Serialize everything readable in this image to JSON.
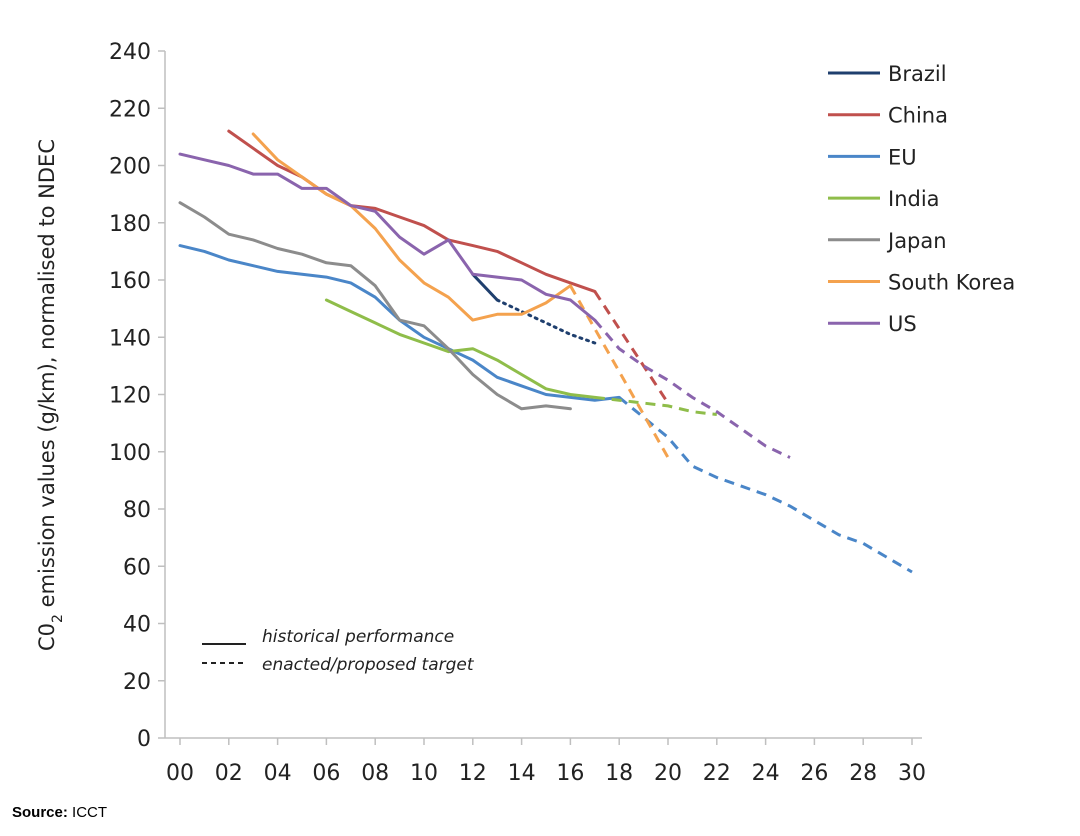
{
  "chart_data": {
    "type": "line",
    "ylabel_pre": "C0",
    "ylabel_sub": "2",
    "ylabel_post": " emission values (g/km), normalised to NDEC",
    "xlim": [
      2000,
      2030
    ],
    "ylim": [
      0,
      240
    ],
    "x_ticks": [
      {
        "value": 2000,
        "label": "00"
      },
      {
        "value": 2002,
        "label": "02"
      },
      {
        "value": 2004,
        "label": "04"
      },
      {
        "value": 2006,
        "label": "06"
      },
      {
        "value": 2008,
        "label": "08"
      },
      {
        "value": 2010,
        "label": "10"
      },
      {
        "value": 2012,
        "label": "12"
      },
      {
        "value": 2014,
        "label": "14"
      },
      {
        "value": 2016,
        "label": "16"
      },
      {
        "value": 2018,
        "label": "18"
      },
      {
        "value": 2020,
        "label": "20"
      },
      {
        "value": 2022,
        "label": "22"
      },
      {
        "value": 2024,
        "label": "24"
      },
      {
        "value": 2026,
        "label": "26"
      },
      {
        "value": 2028,
        "label": "28"
      },
      {
        "value": 2030,
        "label": "30"
      }
    ],
    "y_ticks": [
      0,
      20,
      40,
      60,
      80,
      100,
      120,
      140,
      160,
      180,
      200,
      220,
      240
    ],
    "grid": false,
    "legend_position": "top-right",
    "series": [
      {
        "name": "Brazil",
        "color": "#1f3f6e",
        "historical": [
          [
            2012,
            162
          ],
          [
            2013,
            153
          ]
        ],
        "target": [
          [
            2013,
            153
          ],
          [
            2014,
            149
          ],
          [
            2015,
            145
          ],
          [
            2016,
            141
          ],
          [
            2017,
            138
          ]
        ],
        "target_style": "dotted"
      },
      {
        "name": "China",
        "color": "#c0504d",
        "historical": [
          [
            2002,
            212
          ],
          [
            2003,
            206
          ],
          [
            2004,
            200
          ],
          [
            2005,
            196
          ],
          [
            2006,
            190
          ],
          [
            2007,
            186
          ],
          [
            2008,
            185
          ],
          [
            2009,
            182
          ],
          [
            2010,
            179
          ],
          [
            2011,
            174
          ],
          [
            2012,
            172
          ],
          [
            2013,
            170
          ],
          [
            2014,
            166
          ],
          [
            2015,
            162
          ],
          [
            2016,
            159
          ],
          [
            2017,
            156
          ]
        ],
        "target": [
          [
            2017,
            156
          ],
          [
            2018,
            143
          ],
          [
            2019,
            130
          ],
          [
            2020,
            117
          ]
        ]
      },
      {
        "name": "EU",
        "color": "#4a86c8",
        "historical": [
          [
            2000,
            172
          ],
          [
            2001,
            170
          ],
          [
            2002,
            167
          ],
          [
            2003,
            165
          ],
          [
            2004,
            163
          ],
          [
            2005,
            162
          ],
          [
            2006,
            161
          ],
          [
            2007,
            159
          ],
          [
            2008,
            154
          ],
          [
            2009,
            146
          ],
          [
            2010,
            140
          ],
          [
            2011,
            136
          ],
          [
            2012,
            132
          ],
          [
            2013,
            126
          ],
          [
            2014,
            123
          ],
          [
            2015,
            120
          ],
          [
            2016,
            119
          ],
          [
            2017,
            118
          ],
          [
            2018,
            119
          ]
        ],
        "target": [
          [
            2018,
            119
          ],
          [
            2019,
            112
          ],
          [
            2020,
            105
          ],
          [
            2021,
            95
          ],
          [
            2022,
            91
          ],
          [
            2023,
            88
          ],
          [
            2024,
            85
          ],
          [
            2025,
            81
          ],
          [
            2026,
            76
          ],
          [
            2027,
            71
          ],
          [
            2028,
            68
          ],
          [
            2029,
            63
          ],
          [
            2030,
            58
          ]
        ]
      },
      {
        "name": "India",
        "color": "#8fbd4a",
        "historical": [
          [
            2006,
            153
          ],
          [
            2007,
            149
          ],
          [
            2008,
            145
          ],
          [
            2009,
            141
          ],
          [
            2010,
            138
          ],
          [
            2011,
            135
          ],
          [
            2012,
            136
          ],
          [
            2013,
            132
          ],
          [
            2014,
            127
          ],
          [
            2015,
            122
          ],
          [
            2016,
            120
          ],
          [
            2017,
            119
          ]
        ],
        "target": [
          [
            2017,
            119
          ],
          [
            2018,
            118
          ],
          [
            2019,
            117
          ],
          [
            2020,
            116
          ],
          [
            2021,
            114
          ],
          [
            2022,
            113
          ]
        ]
      },
      {
        "name": "Japan",
        "color": "#8c8c8c",
        "historical": [
          [
            2000,
            187
          ],
          [
            2001,
            182
          ],
          [
            2002,
            176
          ],
          [
            2003,
            174
          ],
          [
            2004,
            171
          ],
          [
            2005,
            169
          ],
          [
            2006,
            166
          ],
          [
            2007,
            165
          ],
          [
            2008,
            158
          ],
          [
            2009,
            146
          ],
          [
            2010,
            144
          ],
          [
            2011,
            136
          ],
          [
            2012,
            127
          ],
          [
            2013,
            120
          ],
          [
            2014,
            115
          ],
          [
            2015,
            116
          ],
          [
            2016,
            115
          ]
        ],
        "target": []
      },
      {
        "name": "South Korea",
        "color": "#f4a24e",
        "historical": [
          [
            2003,
            211
          ],
          [
            2004,
            202
          ],
          [
            2005,
            196
          ],
          [
            2006,
            190
          ],
          [
            2007,
            186
          ],
          [
            2008,
            178
          ],
          [
            2009,
            167
          ],
          [
            2010,
            159
          ],
          [
            2011,
            154
          ],
          [
            2012,
            146
          ],
          [
            2013,
            148
          ],
          [
            2014,
            148
          ],
          [
            2015,
            152
          ],
          [
            2016,
            158
          ]
        ],
        "target": [
          [
            2016,
            158
          ],
          [
            2017,
            143
          ],
          [
            2018,
            128
          ],
          [
            2019,
            113
          ],
          [
            2020,
            98
          ]
        ]
      },
      {
        "name": "US",
        "color": "#8a64ad",
        "historical": [
          [
            2000,
            204
          ],
          [
            2001,
            202
          ],
          [
            2002,
            200
          ],
          [
            2003,
            197
          ],
          [
            2004,
            197
          ],
          [
            2005,
            192
          ],
          [
            2006,
            192
          ],
          [
            2007,
            186
          ],
          [
            2008,
            184
          ],
          [
            2009,
            175
          ],
          [
            2010,
            169
          ],
          [
            2011,
            174
          ],
          [
            2012,
            162
          ],
          [
            2013,
            161
          ],
          [
            2014,
            160
          ],
          [
            2015,
            155
          ],
          [
            2016,
            153
          ],
          [
            2017,
            146
          ]
        ],
        "target": [
          [
            2017,
            146
          ],
          [
            2018,
            136
          ],
          [
            2019,
            130
          ],
          [
            2020,
            125
          ],
          [
            2021,
            119
          ],
          [
            2022,
            114
          ],
          [
            2023,
            108
          ],
          [
            2024,
            102
          ],
          [
            2025,
            98
          ]
        ]
      }
    ],
    "line_style_legend": {
      "solid_label": "historical performance",
      "dashed_label": "enacted/proposed target"
    }
  },
  "source": {
    "label": "Source:",
    "value": " ICCT"
  }
}
